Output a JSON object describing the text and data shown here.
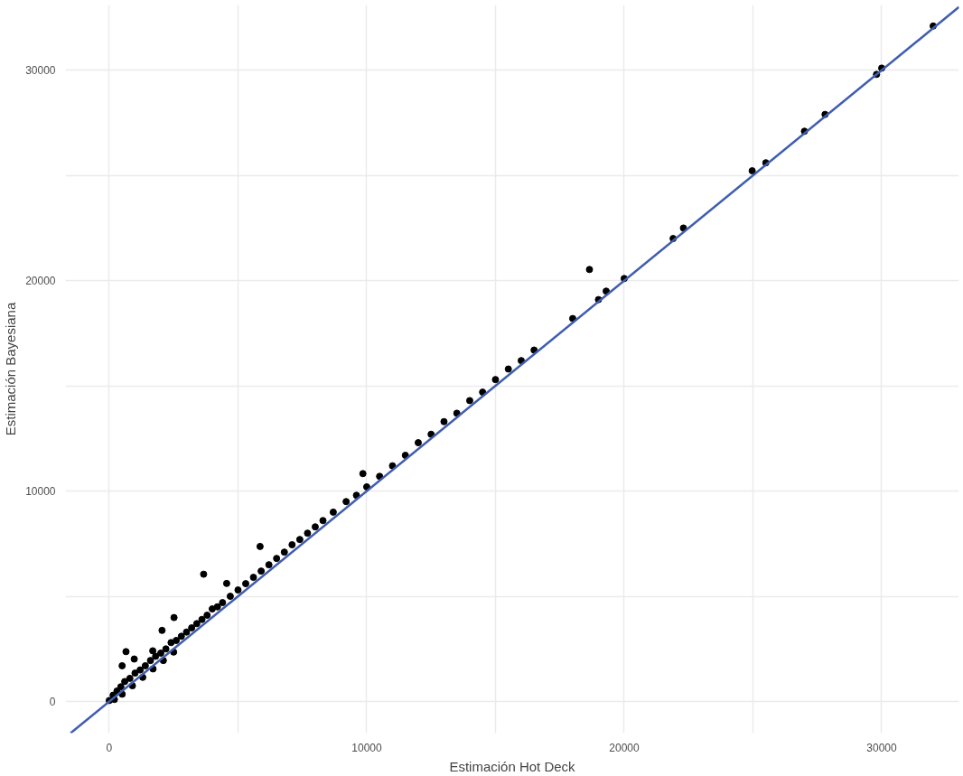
{
  "chart_data": {
    "type": "scatter",
    "xlabel": "Estimación Hot Deck",
    "ylabel": "Estimación Bayesiana",
    "xlim": [
      -1700,
      33000
    ],
    "ylim": [
      -1500,
      33100
    ],
    "xticks": [
      0,
      {
        "value": 5000,
        "label": null
      },
      10000,
      {
        "value": 15000,
        "label": null
      },
      20000,
      {
        "value": 25000,
        "label": null
      },
      30000
    ],
    "yticks": [
      0,
      {
        "value": 5000,
        "label": null
      },
      10000,
      {
        "value": 15000,
        "label": null
      },
      20000,
      {
        "value": 25000,
        "label": null
      },
      30000
    ],
    "grid": true,
    "marker": "circle",
    "series": [
      {
        "color": "#000000",
        "x": [
          0,
          150,
          200,
          300,
          450,
          500,
          600,
          800,
          900,
          1000,
          1200,
          1300,
          1400,
          1600,
          1700,
          1800,
          2000,
          2100,
          2200,
          2400,
          2500,
          2600,
          2800,
          3000,
          3200,
          3400,
          3600,
          3800,
          4000,
          4200,
          4400,
          4700,
          5000,
          5300,
          5600,
          5900,
          6200,
          6500,
          6800,
          7100,
          7400,
          7700,
          8000,
          8300,
          8700,
          9200,
          9600,
          10000,
          10500,
          11000,
          11500,
          12000,
          12500,
          13000,
          13500,
          14000,
          14500,
          15000,
          15500,
          16000,
          16500,
          18000,
          19000,
          19300,
          20000,
          21900,
          22300,
          25500,
          27000,
          27800,
          29800,
          30000,
          32000,
          3665,
          5857,
          2515,
          2050,
          650,
          970,
          500,
          1690,
          4560,
          9850,
          18650,
          24970
        ],
        "values": [
          50,
          300,
          100,
          500,
          700,
          350,
          950,
          1100,
          750,
          1350,
          1500,
          1150,
          1700,
          1950,
          1550,
          2150,
          2300,
          1950,
          2500,
          2800,
          2350,
          2900,
          3100,
          3300,
          3500,
          3700,
          3900,
          4100,
          4400,
          4500,
          4700,
          5000,
          5300,
          5600,
          5900,
          6200,
          6500,
          6800,
          7100,
          7450,
          7700,
          8000,
          8300,
          8600,
          9000,
          9500,
          9800,
          10200,
          10700,
          11200,
          11700,
          12300,
          12700,
          13300,
          13700,
          14300,
          14700,
          15300,
          15800,
          16200,
          16700,
          18200,
          19100,
          19500,
          20100,
          22000,
          22500,
          25600,
          27100,
          27900,
          29800,
          30100,
          32100,
          6050,
          7370,
          3990,
          3380,
          2370,
          2020,
          1700,
          2410,
          5610,
          10830,
          20530,
          25220
        ]
      },
      {
        "type": "line",
        "color": "#3f5db0",
        "marker": "none",
        "x": [
          -1500,
          33000
        ],
        "values": [
          -1500,
          33000
        ]
      }
    ]
  }
}
